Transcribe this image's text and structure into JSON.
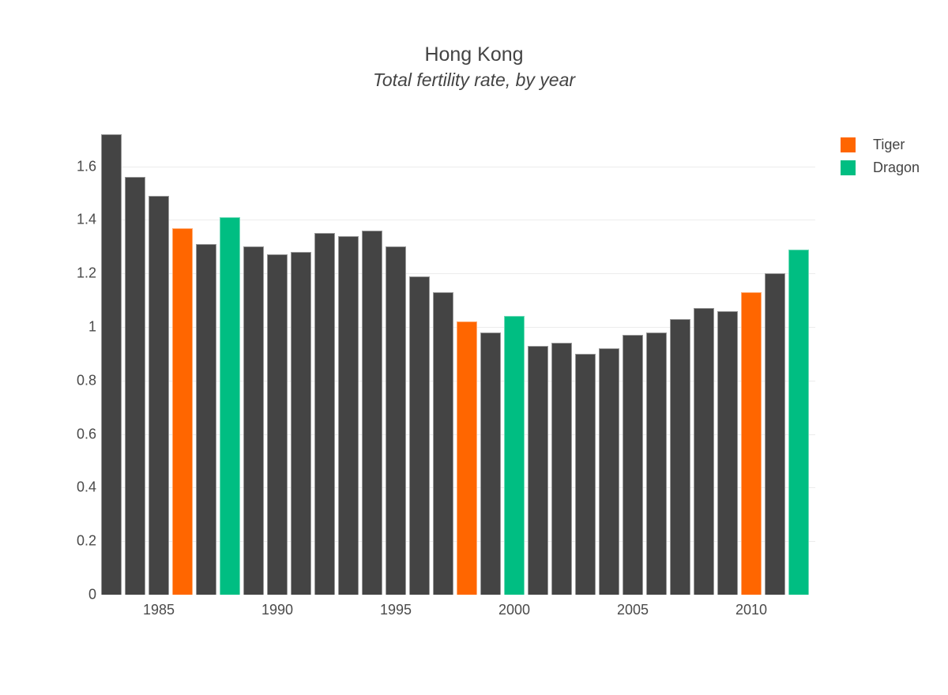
{
  "chart_data": {
    "type": "bar",
    "title": "Hong Kong",
    "subtitle": "Total fertility rate, by year",
    "xlabel": "",
    "ylabel": "",
    "categories": [
      1983,
      1984,
      1985,
      1986,
      1987,
      1988,
      1989,
      1990,
      1991,
      1992,
      1993,
      1994,
      1995,
      1996,
      1997,
      1998,
      1999,
      2000,
      2001,
      2002,
      2003,
      2004,
      2005,
      2006,
      2007,
      2008,
      2009,
      2010,
      2011,
      2012
    ],
    "values": [
      1.72,
      1.56,
      1.49,
      1.37,
      1.31,
      1.41,
      1.3,
      1.27,
      1.28,
      1.35,
      1.34,
      1.36,
      1.3,
      1.19,
      1.13,
      1.02,
      0.98,
      1.04,
      0.93,
      0.94,
      0.9,
      0.92,
      0.97,
      0.98,
      1.03,
      1.07,
      1.06,
      1.13,
      1.2,
      1.29
    ],
    "bar_color_default": "#444444",
    "highlights": [
      {
        "label": "Tiger",
        "color": "#FF6600",
        "years": [
          1986,
          1998,
          2010
        ]
      },
      {
        "label": "Dragon",
        "color": "#00BE82",
        "years": [
          1988,
          2000,
          2012
        ]
      }
    ],
    "yticks": [
      {
        "value": 0,
        "label": "0"
      },
      {
        "value": 0.2,
        "label": "0.2"
      },
      {
        "value": 0.4,
        "label": "0.4"
      },
      {
        "value": 0.6,
        "label": "0.6"
      },
      {
        "value": 0.8,
        "label": "0.8"
      },
      {
        "value": 1,
        "label": "1"
      },
      {
        "value": 1.2,
        "label": "1.2"
      },
      {
        "value": 1.4,
        "label": "1.4"
      },
      {
        "value": 1.6,
        "label": "1.6"
      }
    ],
    "xticks": [
      {
        "value": 1985,
        "label": "1985"
      },
      {
        "value": 1990,
        "label": "1990"
      },
      {
        "value": 1995,
        "label": "1995"
      },
      {
        "value": 2000,
        "label": "2000"
      },
      {
        "value": 2005,
        "label": "2005"
      },
      {
        "value": 2010,
        "label": "2010"
      }
    ],
    "ylim": [
      0,
      1.78
    ],
    "grid": true,
    "legend_position": "top-right"
  }
}
